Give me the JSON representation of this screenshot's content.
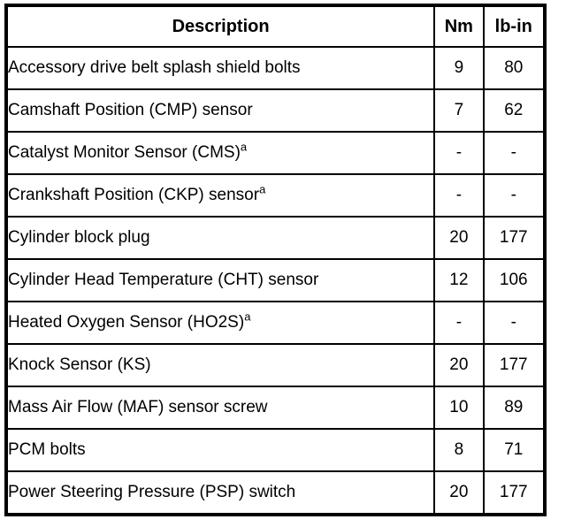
{
  "table": {
    "headers": {
      "description": "Description",
      "nm": "Nm",
      "lbin": "lb-in"
    },
    "rows": [
      {
        "description": "Accessory drive belt splash shield bolts",
        "sup": "",
        "nm": "9",
        "lbin": "80"
      },
      {
        "description": "Camshaft Position (CMP) sensor",
        "sup": "",
        "nm": "7",
        "lbin": "62"
      },
      {
        "description": "Catalyst Monitor Sensor (CMS)",
        "sup": "a",
        "nm": "-",
        "lbin": "-"
      },
      {
        "description": "Crankshaft Position (CKP) sensor",
        "sup": "a",
        "nm": "-",
        "lbin": "-"
      },
      {
        "description": "Cylinder block plug",
        "sup": "",
        "nm": "20",
        "lbin": "177"
      },
      {
        "description": "Cylinder Head Temperature (CHT) sensor",
        "sup": "",
        "nm": "12",
        "lbin": "106"
      },
      {
        "description": "Heated Oxygen Sensor (HO2S)",
        "sup": "a",
        "nm": "-",
        "lbin": "-"
      },
      {
        "description": "Knock Sensor (KS)",
        "sup": "",
        "nm": "20",
        "lbin": "177"
      },
      {
        "description": "Mass Air Flow (MAF) sensor screw",
        "sup": "",
        "nm": "10",
        "lbin": "89"
      },
      {
        "description": "PCM bolts",
        "sup": "",
        "nm": "8",
        "lbin": "71"
      },
      {
        "description": "Power Steering Pressure (PSP) switch",
        "sup": "",
        "nm": "20",
        "lbin": "177"
      }
    ]
  }
}
